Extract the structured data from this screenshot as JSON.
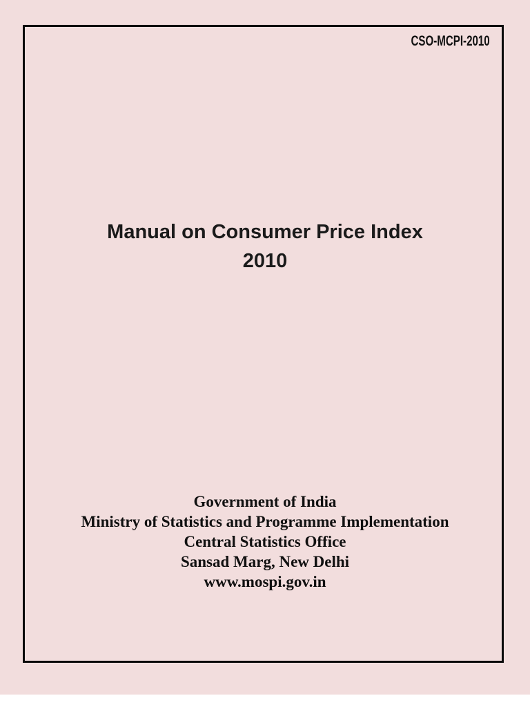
{
  "page": {
    "doc_code": "CSO-MCPI-2010",
    "title_line1": "Manual on Consumer Price Index",
    "title_line2": "2010",
    "org_lines": [
      "Government of India",
      "Ministry of Statistics and Programme Implementation",
      "Central Statistics Office",
      "Sansad Marg, New Delhi",
      "www.mospi.gov.in"
    ]
  },
  "colors": {
    "page_bg": "#f2dddd",
    "border": "#0a0a0a",
    "text": "#111111"
  }
}
